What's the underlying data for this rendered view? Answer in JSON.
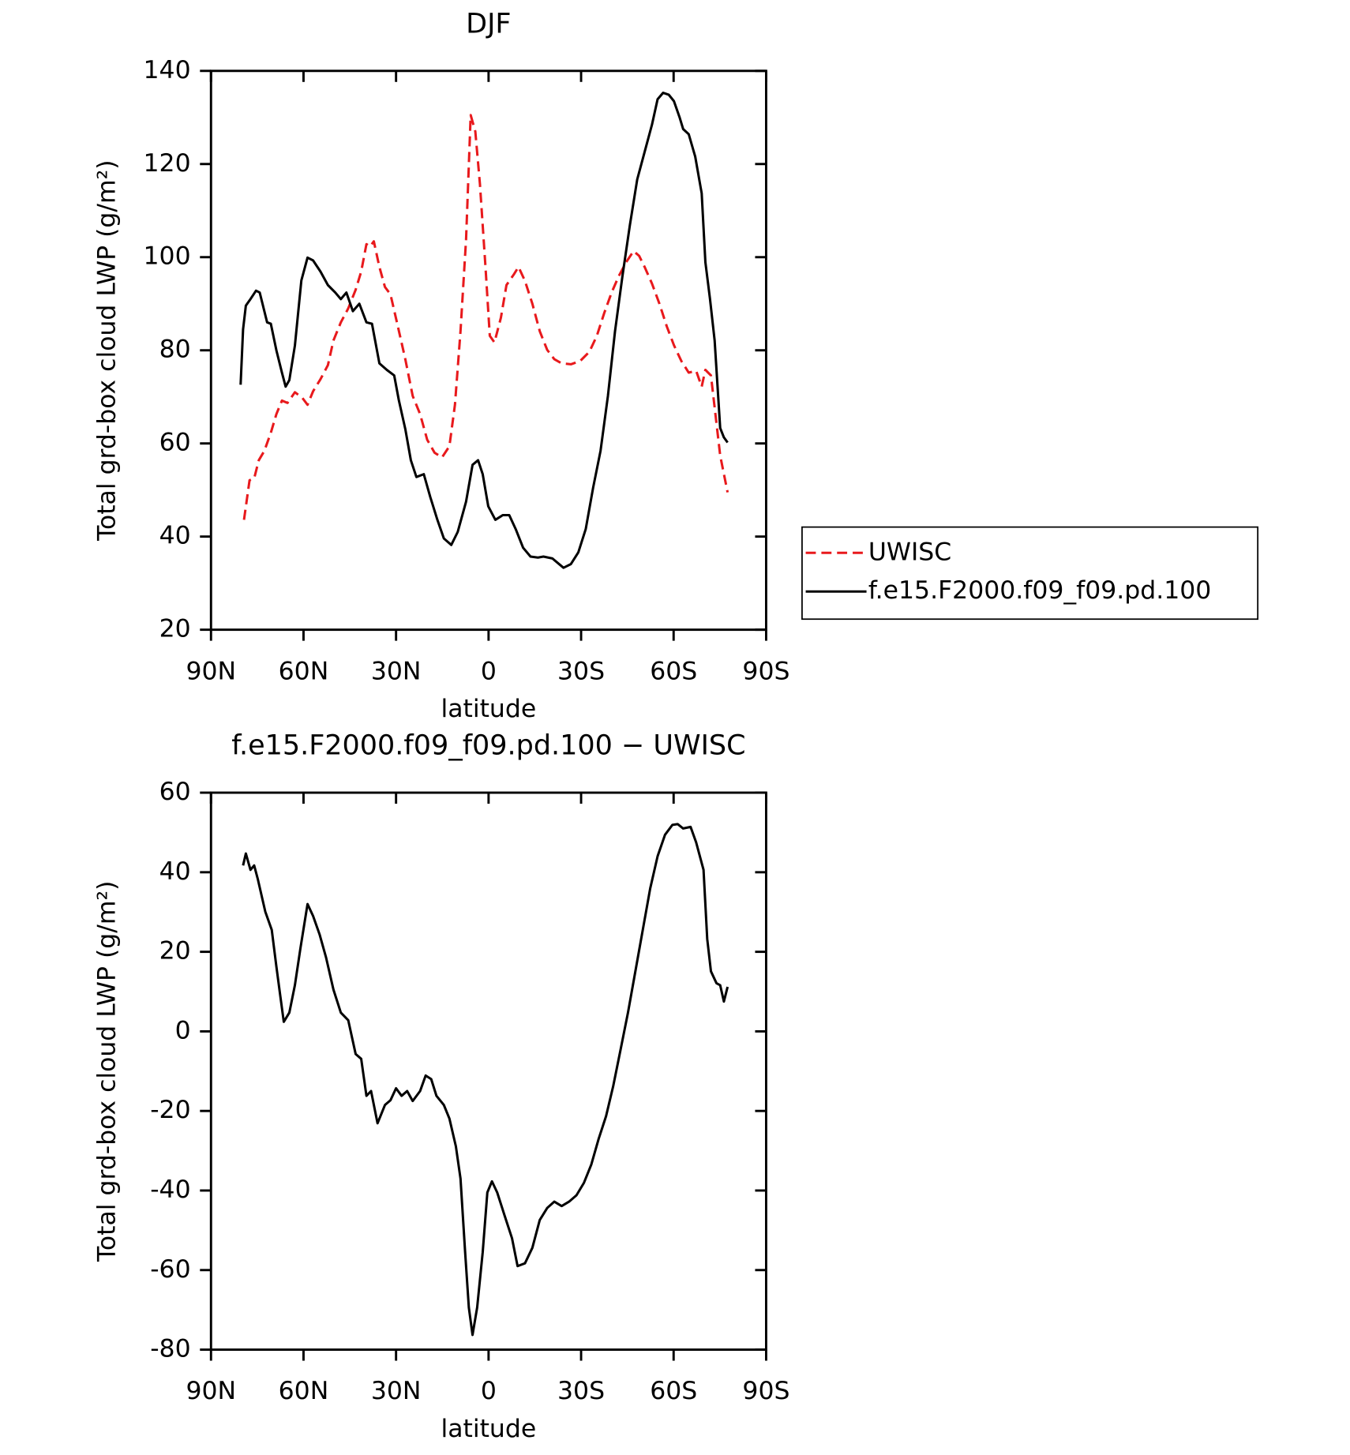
{
  "chart_data": [
    {
      "type": "line",
      "title": "DJF",
      "xlabel": "latitude",
      "ylabel": "Total grd-box cloud LWP (g/m²)",
      "xlim": [
        90,
        -90
      ],
      "xticks": [
        {
          "value": 90,
          "label": "90N"
        },
        {
          "value": 60,
          "label": "60N"
        },
        {
          "value": 30,
          "label": "30N"
        },
        0,
        {
          "value": -30,
          "label": "30S"
        },
        {
          "value": -60,
          "label": "60S"
        },
        {
          "value": -90,
          "label": "90S"
        }
      ],
      "ylim": [
        20,
        140
      ],
      "yticks": [
        20,
        40,
        60,
        80,
        100,
        120,
        140
      ],
      "legend": "right",
      "series": [
        {
          "name": "UWISC",
          "color": "#e8191c",
          "style": "dashed",
          "x": [
            79.3,
            77.5,
            76,
            74.5,
            72.7,
            70.6,
            68.8,
            67,
            65.2,
            62.8,
            60.4,
            58.7,
            56.9,
            54.5,
            52.1,
            50.3,
            47.9,
            45.5,
            43.1,
            41.3,
            39.6,
            38.4,
            37.2,
            35.4,
            33.6,
            31.8,
            29.4,
            27,
            24.6,
            22.2,
            19.9,
            17.5,
            15.1,
            12.7,
            10.9,
            9.1,
            7.3,
            5.8,
            4.3,
            2.8,
            1,
            -0.4,
            -1.9,
            -4,
            -5.8,
            -8.2,
            -9.7,
            -11.8,
            -14.2,
            -16.6,
            -19,
            -21.3,
            -23.7,
            -26.7,
            -29.7,
            -32.7,
            -35.1,
            -37.5,
            -39.9,
            -42.2,
            -44.6,
            -47,
            -48.8,
            -50.6,
            -53,
            -55.4,
            -57.8,
            -60.1,
            -62.5,
            -64.9,
            -67.3,
            -69.1,
            -70.3,
            -72.1,
            -73.9,
            -75.1,
            -77.5
          ],
          "values": [
            43.6,
            52.1,
            52.5,
            56.4,
            58.4,
            62.3,
            66.3,
            69.2,
            68.7,
            71,
            69.8,
            68.3,
            71.2,
            73.8,
            76.8,
            82.1,
            86,
            89,
            93,
            96.9,
            102.8,
            102.3,
            103.4,
            97.9,
            93.6,
            92,
            85.1,
            78.1,
            70.2,
            66.3,
            60.8,
            58,
            57,
            59.4,
            68.3,
            84.1,
            103.8,
            130.5,
            127,
            115.7,
            97.9,
            83.1,
            81.7,
            87,
            94,
            96.3,
            97.9,
            94.9,
            90,
            84.1,
            80.1,
            78.1,
            77.2,
            77,
            77.7,
            79.7,
            83.1,
            88,
            92.4,
            95.9,
            98.9,
            101.3,
            100.3,
            97.9,
            94.3,
            90,
            85.1,
            81.1,
            77.7,
            75.2,
            75.6,
            72.2,
            75.8,
            74.6,
            64.3,
            57.4,
            49.5
          ]
        },
        {
          "name": "f.e15.F2000.f09_f09.pd.100",
          "color": "#000000",
          "style": "solid",
          "x": [
            80.4,
            79.6,
            78.7,
            77.2,
            75.4,
            74.2,
            71.8,
            70.6,
            68.8,
            67,
            65.8,
            64.6,
            62.8,
            60.7,
            58.7,
            56.9,
            54.5,
            52.1,
            49.7,
            47.9,
            46.1,
            44,
            41.9,
            39.6,
            37.8,
            35.4,
            33,
            30.6,
            29.1,
            27,
            25.2,
            23.4,
            21,
            18.9,
            16.6,
            14.5,
            12.1,
            10,
            7.3,
            5.2,
            3.4,
            1.9,
            0.1,
            -2.2,
            -4.6,
            -6.7,
            -8.8,
            -11.2,
            -13.6,
            -16,
            -17.8,
            -20.7,
            -22.5,
            -24.3,
            -26.7,
            -29.1,
            -31.5,
            -33.9,
            -36.3,
            -38.7,
            -41,
            -43.4,
            -45.8,
            -48.2,
            -50.6,
            -53,
            -54.8,
            -56.6,
            -58.4,
            -60.1,
            -61.9,
            -63.1,
            -64.9,
            -67,
            -69.1,
            -70.3,
            -71.8,
            -73.3,
            -75.1,
            -76.3,
            -77.5
          ],
          "values": [
            72.6,
            84.5,
            89.6,
            91,
            92.8,
            92.4,
            86,
            85.7,
            80,
            75.2,
            72.2,
            73.6,
            81,
            95,
            99.9,
            99.3,
            96.9,
            94,
            92.4,
            91,
            92.4,
            88.4,
            90,
            86,
            85.7,
            77.2,
            75.8,
            74.6,
            69.3,
            63.1,
            56.4,
            52.8,
            53.4,
            48.5,
            43.6,
            39.6,
            38.2,
            41,
            47.5,
            55.4,
            56.4,
            53.4,
            46.5,
            43.6,
            44.6,
            44.6,
            41.6,
            37.6,
            35.7,
            35.5,
            35.7,
            35.3,
            34.3,
            33.3,
            34.1,
            36.6,
            41.6,
            50.5,
            58.4,
            70.2,
            84.1,
            95.9,
            106.8,
            116.7,
            122.6,
            128.5,
            133.9,
            135.3,
            134.9,
            133.5,
            130.1,
            127.5,
            126.4,
            121.6,
            113.7,
            98.9,
            91,
            82.1,
            63.3,
            61.3,
            60.2
          ]
        }
      ]
    },
    {
      "type": "line",
      "title": "f.e15.F2000.f09_f09.pd.100 − UWISC",
      "xlabel": "latitude",
      "ylabel": "Total grd-box cloud LWP (g/m²)",
      "xlim": [
        90,
        -90
      ],
      "xticks": [
        {
          "value": 90,
          "label": "90N"
        },
        {
          "value": 60,
          "label": "60N"
        },
        {
          "value": 30,
          "label": "30N"
        },
        0,
        {
          "value": -30,
          "label": "30S"
        },
        {
          "value": -60,
          "label": "60S"
        },
        {
          "value": -90,
          "label": "90S"
        }
      ],
      "ylim": [
        -80,
        60
      ],
      "yticks": [
        -80,
        -60,
        -40,
        -20,
        0,
        20,
        40,
        60
      ],
      "color": "#000000",
      "x": [
        79.6,
        78.7,
        77.2,
        76,
        74.8,
        72.4,
        70.3,
        68.8,
        67.6,
        66.4,
        64.6,
        62.8,
        61,
        58.7,
        56.9,
        54.8,
        52.7,
        50.3,
        47.9,
        45.5,
        43.1,
        41.3,
        39.6,
        38.1,
        36,
        33.6,
        31.8,
        30,
        28.2,
        26.4,
        24.6,
        22.2,
        20.4,
        18.6,
        16.9,
        14.5,
        12.7,
        10.6,
        9.1,
        7.6,
        6.4,
        5.2,
        3.7,
        1.9,
        0.4,
        -1.1,
        -2.8,
        -5.2,
        -7.6,
        -9.4,
        -11.8,
        -14.2,
        -16.6,
        -19,
        -21.3,
        -23.7,
        -26.1,
        -28.5,
        -30.9,
        -33.3,
        -35.7,
        -38.1,
        -40.4,
        -42.8,
        -45.2,
        -47.6,
        -50,
        -52.4,
        -54.8,
        -57.2,
        -59.6,
        -61.3,
        -63.1,
        -65.5,
        -67.3,
        -69.7,
        -70.9,
        -72.1,
        -73.9,
        -75.1,
        -76.3,
        -77.5
      ],
      "values": [
        41.7,
        44.7,
        40.6,
        41.7,
        38.2,
        30.1,
        25.5,
        16.3,
        9.3,
        2.4,
        4.7,
        11.6,
        20.9,
        32,
        29,
        24.4,
        18.6,
        10.5,
        4.7,
        2.8,
        -5.7,
        -6.9,
        -16.2,
        -15,
        -23.1,
        -18.5,
        -17.3,
        -14.3,
        -16.2,
        -15,
        -17.5,
        -15,
        -11.1,
        -12,
        -16.2,
        -18.5,
        -21.9,
        -28.9,
        -37,
        -55.5,
        -69.4,
        -76.3,
        -69.4,
        -55.5,
        -40.5,
        -37.7,
        -40.5,
        -46.3,
        -52,
        -59,
        -58.3,
        -54.4,
        -47.4,
        -44.4,
        -42.8,
        -43.9,
        -42.8,
        -41.2,
        -38.1,
        -33.5,
        -27,
        -21.3,
        -13.8,
        -4.6,
        4.7,
        15.1,
        25.5,
        35.9,
        44,
        49.4,
        51.9,
        52.1,
        51,
        51.4,
        47.5,
        40.6,
        23.2,
        15.1,
        12.1,
        11.6,
        7.5,
        11.2
      ]
    }
  ]
}
